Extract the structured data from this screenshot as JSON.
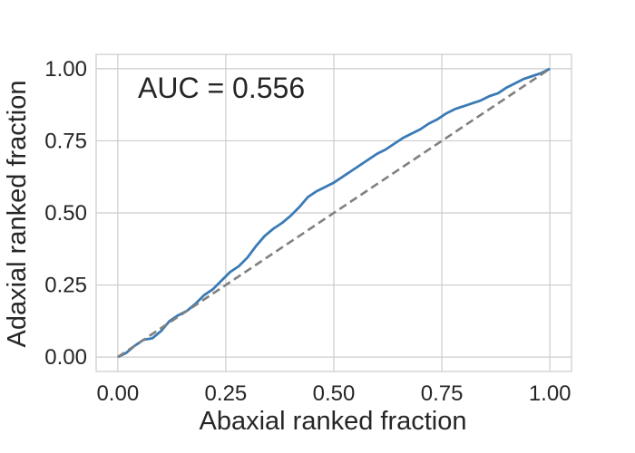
{
  "chart_data": {
    "type": "line",
    "title": "",
    "xlabel": "Abaxial ranked fraction",
    "ylabel": "Adaxial ranked fraction",
    "xlim": [
      -0.05,
      1.05
    ],
    "ylim": [
      -0.05,
      1.05
    ],
    "xticks": [
      0.0,
      0.25,
      0.5,
      0.75,
      1.0
    ],
    "yticks": [
      0.0,
      0.25,
      0.5,
      0.75,
      1.0
    ],
    "xtick_labels": [
      "0.00",
      "0.25",
      "0.50",
      "0.75",
      "1.00"
    ],
    "ytick_labels": [
      "0.00",
      "0.25",
      "0.50",
      "0.75",
      "1.00"
    ],
    "grid": true,
    "annotation": "AUC = 0.556",
    "colors": {
      "curve": "#3a7ab5",
      "diagonal": "#808080",
      "grid": "#cccccc",
      "frame": "#cccccc"
    },
    "series": [
      {
        "style": "solid",
        "x": [
          0.0,
          0.02,
          0.04,
          0.05,
          0.06,
          0.08,
          0.1,
          0.12,
          0.14,
          0.16,
          0.18,
          0.2,
          0.22,
          0.24,
          0.26,
          0.28,
          0.3,
          0.32,
          0.34,
          0.36,
          0.38,
          0.4,
          0.42,
          0.44,
          0.46,
          0.48,
          0.5,
          0.52,
          0.54,
          0.56,
          0.58,
          0.6,
          0.62,
          0.64,
          0.66,
          0.68,
          0.7,
          0.72,
          0.74,
          0.76,
          0.78,
          0.8,
          0.82,
          0.84,
          0.86,
          0.88,
          0.9,
          0.92,
          0.94,
          0.96,
          0.98,
          1.0
        ],
        "y": [
          0.0,
          0.015,
          0.04,
          0.05,
          0.06,
          0.065,
          0.09,
          0.125,
          0.145,
          0.16,
          0.185,
          0.215,
          0.235,
          0.265,
          0.295,
          0.315,
          0.345,
          0.385,
          0.42,
          0.445,
          0.465,
          0.49,
          0.52,
          0.555,
          0.575,
          0.59,
          0.605,
          0.625,
          0.645,
          0.665,
          0.685,
          0.705,
          0.72,
          0.74,
          0.76,
          0.775,
          0.79,
          0.81,
          0.825,
          0.845,
          0.86,
          0.87,
          0.88,
          0.89,
          0.905,
          0.915,
          0.935,
          0.95,
          0.965,
          0.975,
          0.985,
          1.0
        ]
      },
      {
        "style": "dashed",
        "x": [
          0.0,
          1.0
        ],
        "y": [
          0.0,
          1.0
        ]
      }
    ]
  }
}
